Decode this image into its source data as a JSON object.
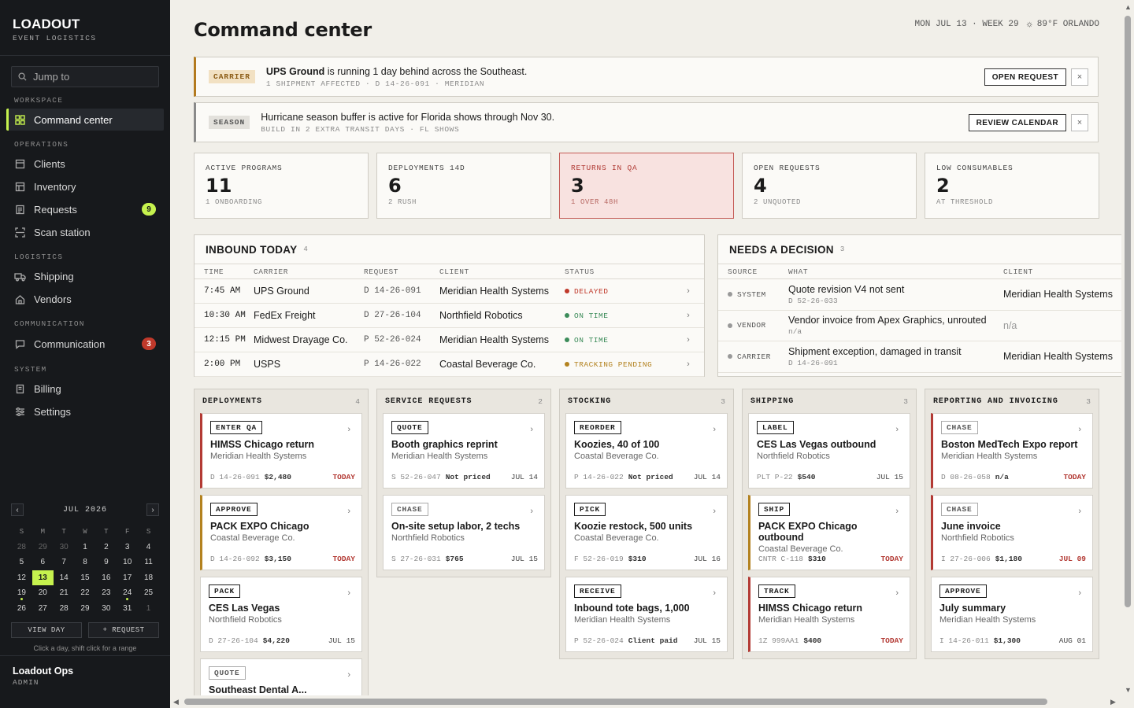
{
  "brand": {
    "name": "LOADOUT",
    "subtitle": "EVENT LOGISTICS"
  },
  "search": {
    "placeholder": "Jump to"
  },
  "sections": {
    "workspace": "WORKSPACE",
    "operations": "OPERATIONS",
    "logistics": "LOGISTICS",
    "communication": "COMMUNICATION",
    "system": "SYSTEM"
  },
  "nav": {
    "command_center": "Command center",
    "clients": "Clients",
    "inventory": "Inventory",
    "requests": "Requests",
    "requests_badge": "9",
    "scan_station": "Scan station",
    "shipping": "Shipping",
    "vendors": "Vendors",
    "communication": "Communication",
    "communication_badge": "3",
    "billing": "Billing",
    "settings": "Settings"
  },
  "calendar": {
    "month": "JUL 2026",
    "dow": [
      "S",
      "M",
      "T",
      "W",
      "T",
      "F",
      "S"
    ],
    "weeks": [
      [
        "28",
        "29",
        "30",
        "1",
        "2",
        "3",
        "4"
      ],
      [
        "5",
        "6",
        "7",
        "8",
        "9",
        "10",
        "11"
      ],
      [
        "12",
        "13",
        "14",
        "15",
        "16",
        "17",
        "18"
      ],
      [
        "19",
        "20",
        "21",
        "22",
        "23",
        "24",
        "25"
      ],
      [
        "26",
        "27",
        "28",
        "29",
        "30",
        "31",
        "1"
      ]
    ],
    "today": "13",
    "view_day": "VIEW DAY",
    "add_request": "+ REQUEST",
    "hint": "Click a day, shift click for a range"
  },
  "user": {
    "name": "Loadout Ops",
    "role": "ADMIN"
  },
  "page": {
    "title": "Command center",
    "meta": "MON JUL 13 · WEEK 29",
    "weather": "89°F ORLANDO"
  },
  "alerts": {
    "carrier": {
      "tag": "CARRIER",
      "bold": "UPS Ground",
      "message": " is running 1 day behind across the Southeast.",
      "sub": "1 SHIPMENT AFFECTED · D 14-26-091 · MERIDIAN",
      "button": "OPEN REQUEST",
      "close": "×"
    },
    "season": {
      "tag": "SEASON",
      "message": "Hurricane season buffer is active for Florida shows through Nov 30.",
      "sub": "BUILD IN 2 EXTRA TRANSIT DAYS · FL SHOWS",
      "button": "REVIEW CALENDAR",
      "close": "×"
    }
  },
  "stats": [
    {
      "label": "ACTIVE PROGRAMS",
      "value": "11",
      "sub": "1 ONBOARDING"
    },
    {
      "label": "DEPLOYMENTS 14D",
      "value": "6",
      "sub": "2 RUSH"
    },
    {
      "label": "RETURNS IN QA",
      "value": "3",
      "sub": "1 OVER 48H"
    },
    {
      "label": "OPEN REQUESTS",
      "value": "4",
      "sub": "2 UNQUOTED"
    },
    {
      "label": "LOW CONSUMABLES",
      "value": "2",
      "sub": "AT THRESHOLD"
    }
  ],
  "inbound": {
    "title": "INBOUND TODAY",
    "count": "4",
    "headers": {
      "time": "TIME",
      "carrier": "CARRIER",
      "request": "REQUEST",
      "client": "CLIENT",
      "status": "STATUS"
    },
    "rows": [
      {
        "time": "7:45 AM",
        "carrier": "UPS Ground",
        "request": "D 14-26-091",
        "client": "Meridian Health Systems",
        "status": "DELAYED",
        "color": "#c0392b"
      },
      {
        "time": "10:30 AM",
        "carrier": "FedEx Freight",
        "request": "D 27-26-104",
        "client": "Northfield Robotics",
        "status": "ON TIME",
        "color": "#3c8c5a"
      },
      {
        "time": "12:15 PM",
        "carrier": "Midwest Drayage Co.",
        "request": "P 52-26-024",
        "client": "Meridian Health Systems",
        "status": "ON TIME",
        "color": "#3c8c5a"
      },
      {
        "time": "2:00 PM",
        "carrier": "USPS",
        "request": "P 14-26-022",
        "client": "Coastal Beverage Co.",
        "status": "TRACKING PENDING",
        "color": "#b3821f"
      }
    ]
  },
  "decision": {
    "title": "NEEDS A DECISION",
    "count": "3",
    "headers": {
      "source": "SOURCE",
      "what": "WHAT",
      "client": "CLIENT"
    },
    "rows": [
      {
        "source": "SYSTEM",
        "what": "Quote revision V4 not sent",
        "ref": "D 52-26-033",
        "client": "Meridian Health Systems"
      },
      {
        "source": "VENDOR",
        "what": "Vendor invoice from Apex Graphics, unrouted",
        "ref": "n/a",
        "client": "n/a"
      },
      {
        "source": "CARRIER",
        "what": "Shipment exception, damaged in transit",
        "ref": "D 14-26-091",
        "client": "Meridian Health Systems"
      }
    ]
  },
  "board": [
    {
      "title": "DEPLOYMENTS",
      "count": "4",
      "cards": [
        {
          "tag": "ENTER QA",
          "title": "HIMSS Chicago return",
          "client": "Meridian Health Systems",
          "id": "D 14-26-091",
          "amount": "$2,480",
          "due": "TODAY",
          "accent": "red"
        },
        {
          "tag": "APPROVE",
          "title": "PACK EXPO Chicago",
          "client": "Coastal Beverage Co.",
          "id": "D 14-26-092",
          "amount": "$3,150",
          "due": "TODAY",
          "accent": "amber"
        },
        {
          "tag": "PACK",
          "title": "CES Las Vegas",
          "client": "Northfield Robotics",
          "id": "D 27-26-104",
          "amount": "$4,220",
          "due": "JUL 15",
          "accent": ""
        },
        {
          "tag": "QUOTE",
          "title": "Southeast Dental A...",
          "client": "",
          "id": "",
          "amount": "",
          "due": "",
          "accent": "",
          "soft": true
        }
      ]
    },
    {
      "title": "SERVICE REQUESTS",
      "count": "2",
      "cards": [
        {
          "tag": "QUOTE",
          "title": "Booth graphics reprint",
          "client": "Meridian Health Systems",
          "id": "S 52-26-047",
          "amount": "Not priced",
          "due": "JUL 14",
          "accent": ""
        },
        {
          "tag": "CHASE",
          "title": "On-site setup labor, 2 techs",
          "client": "Northfield Robotics",
          "id": "S 27-26-031",
          "amount": "$765",
          "due": "JUL 15",
          "accent": "",
          "soft": true
        }
      ]
    },
    {
      "title": "STOCKING",
      "count": "3",
      "cards": [
        {
          "tag": "REORDER",
          "title": "Koozies, 40 of 100",
          "client": "Coastal Beverage Co.",
          "id": "P 14-26-022",
          "amount": "Not priced",
          "due": "JUL 14",
          "accent": ""
        },
        {
          "tag": "PICK",
          "title": "Koozie restock, 500 units",
          "client": "Coastal Beverage Co.",
          "id": "F 52-26-019",
          "amount": "$310",
          "due": "JUL 16",
          "accent": ""
        },
        {
          "tag": "RECEIVE",
          "title": "Inbound tote bags, 1,000",
          "client": "Meridian Health Systems",
          "id": "P 52-26-024",
          "amount": "Client paid",
          "due": "JUL 15",
          "accent": ""
        }
      ]
    },
    {
      "title": "SHIPPING",
      "count": "3",
      "cards": [
        {
          "tag": "LABEL",
          "title": "CES Las Vegas outbound",
          "client": "Northfield Robotics",
          "id": "PLT P-22",
          "amount": "$540",
          "due": "JUL 15",
          "accent": ""
        },
        {
          "tag": "SHIP",
          "title": "PACK EXPO Chicago outbound",
          "client": "Coastal Beverage Co.",
          "id": "CNTR C-118",
          "amount": "$310",
          "due": "TODAY",
          "accent": "amber"
        },
        {
          "tag": "TRACK",
          "title": "HIMSS Chicago return",
          "client": "Meridian Health Systems",
          "id": "1Z 999AA1",
          "amount": "$400",
          "due": "TODAY",
          "accent": "red"
        }
      ]
    },
    {
      "title": "REPORTING AND INVOICING",
      "count": "3",
      "cards": [
        {
          "tag": "CHASE",
          "title": "Boston MedTech Expo report",
          "client": "Meridian Health Systems",
          "id": "D 08-26-058",
          "amount": "n/a",
          "due": "TODAY",
          "accent": "red",
          "soft": true
        },
        {
          "tag": "CHASE",
          "title": "June invoice",
          "client": "Northfield Robotics",
          "id": "I 27-26-006",
          "amount": "$1,180",
          "due": "JUL 09",
          "accent": "red",
          "soft": true
        },
        {
          "tag": "APPROVE",
          "title": "July summary",
          "client": "Meridian Health Systems",
          "id": "I 14-26-011",
          "amount": "$1,300",
          "due": "AUG 01",
          "accent": ""
        }
      ]
    }
  ],
  "colors": {
    "accent": "#c6f24e",
    "sidebar": "#17191c",
    "danger": "#c0392b",
    "warning": "#b3821f",
    "ok": "#3c8c5a"
  }
}
